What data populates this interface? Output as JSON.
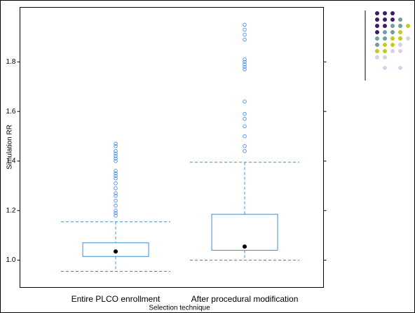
{
  "chart_data": {
    "type": "box",
    "x_label": "Selection technique",
    "y_label": "Simulation RR",
    "categories": [
      "Entire PLCO enrollment",
      "After procedural modification"
    ],
    "color": "#3a8fd0",
    "outlier_color": "#4a90e2",
    "mean_color": "#000000",
    "ylim": [
      0.89,
      2.02
    ],
    "yticks": [
      {
        "value": 1.0,
        "label": "1.0"
      },
      1.2,
      1.4,
      1.6,
      1.8
    ],
    "stats": [
      {
        "low": 0.955,
        "q1": 1.015,
        "q3": 1.07,
        "high": 1.155,
        "mean": 1.035,
        "outliers": [
          1.47,
          1.46,
          1.44,
          1.43,
          1.42,
          1.41,
          1.4,
          1.36,
          1.35,
          1.34,
          1.33,
          1.31,
          1.29,
          1.27,
          1.26,
          1.24,
          1.22,
          1.2,
          1.19,
          1.18
        ]
      },
      {
        "low": 1.0,
        "q1": 1.04,
        "q3": 1.185,
        "high": 1.395,
        "mean": 1.055,
        "outliers": [
          1.95,
          1.93,
          1.91,
          1.89,
          1.81,
          1.8,
          1.79,
          1.78,
          1.77,
          1.64,
          1.59,
          1.57,
          1.54,
          1.5,
          1.46,
          1.44
        ]
      }
    ]
  }
}
